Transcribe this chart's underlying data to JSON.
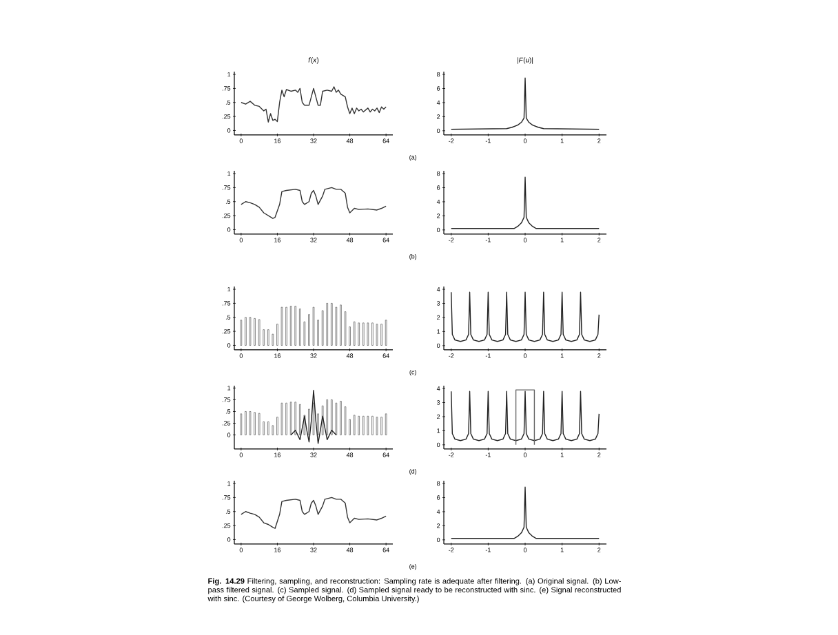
{
  "chart_data": [
    {
      "type": "line",
      "title": "*f*(*x*)",
      "xlim": [
        -3,
        67
      ],
      "ylim": [
        -0.08,
        1.05
      ],
      "xticks": [
        0,
        16,
        32,
        48,
        64
      ],
      "yticks": [
        0,
        {
          "value": 0.25,
          "label": ".25"
        },
        {
          "value": 0.5,
          "label": ".5"
        },
        {
          "value": 0.75,
          "label": ".75"
        },
        1
      ],
      "color": "#333333",
      "x": [
        0,
        2,
        4,
        6,
        8,
        10,
        11,
        12,
        13,
        14,
        15,
        16,
        17,
        18,
        19,
        20,
        22,
        24,
        25,
        26,
        27,
        28,
        30,
        31,
        32,
        33,
        34,
        35,
        36,
        38,
        40,
        41,
        42,
        43,
        44,
        46,
        47,
        48,
        49,
        50,
        51,
        52,
        53,
        54,
        56,
        57,
        58,
        59,
        60,
        61,
        62,
        63,
        64
      ],
      "values": [
        0.5,
        0.47,
        0.52,
        0.45,
        0.43,
        0.35,
        0.38,
        0.15,
        0.3,
        0.18,
        0.2,
        0.16,
        0.5,
        0.72,
        0.6,
        0.73,
        0.7,
        0.72,
        0.68,
        0.75,
        0.5,
        0.45,
        0.45,
        0.6,
        0.75,
        0.6,
        0.45,
        0.45,
        0.7,
        0.72,
        0.7,
        0.78,
        0.68,
        0.72,
        0.65,
        0.6,
        0.42,
        0.3,
        0.4,
        0.3,
        0.4,
        0.35,
        0.38,
        0.33,
        0.4,
        0.33,
        0.38,
        0.35,
        0.4,
        0.32,
        0.42,
        0.38,
        0.42
      ]
    },
    {
      "type": "line",
      "title": "|*F*(*u*)|",
      "annotations": [
        "(a)"
      ],
      "xlim": [
        -2.2,
        2.2
      ],
      "ylim": [
        -0.6,
        8.4
      ],
      "xticks": [
        -2,
        -1,
        0,
        1,
        2
      ],
      "yticks": [
        0,
        2,
        4,
        6,
        8
      ],
      "color": "#222222",
      "x": [
        -2,
        -0.5,
        -0.35,
        -0.2,
        -0.1,
        -0.03,
        0,
        0.03,
        0.1,
        0.2,
        0.35,
        0.5,
        2
      ],
      "values": [
        0.2,
        0.3,
        0.5,
        0.8,
        1.2,
        1.8,
        7.5,
        1.8,
        1.2,
        0.8,
        0.5,
        0.3,
        0.2
      ]
    },
    {
      "type": "line",
      "xlim": [
        -3,
        67
      ],
      "ylim": [
        -0.08,
        1.05
      ],
      "xticks": [
        0,
        16,
        32,
        48,
        64
      ],
      "yticks": [
        0,
        {
          "value": 0.25,
          "label": ".25"
        },
        {
          "value": 0.5,
          "label": ".5"
        },
        {
          "value": 0.75,
          "label": ".75"
        },
        1
      ],
      "color": "#333333",
      "x": [
        0,
        2,
        4,
        6,
        8,
        10,
        12,
        14,
        15,
        17,
        18,
        20,
        24,
        26,
        27,
        28,
        30,
        31,
        32,
        33,
        34,
        36,
        37,
        40,
        42,
        44,
        46,
        47,
        48,
        50,
        52,
        56,
        60,
        62,
        64
      ],
      "values": [
        0.45,
        0.5,
        0.48,
        0.45,
        0.4,
        0.3,
        0.25,
        0.2,
        0.22,
        0.45,
        0.68,
        0.7,
        0.72,
        0.7,
        0.5,
        0.45,
        0.5,
        0.65,
        0.7,
        0.6,
        0.45,
        0.6,
        0.72,
        0.75,
        0.72,
        0.72,
        0.65,
        0.4,
        0.3,
        0.38,
        0.36,
        0.37,
        0.35,
        0.38,
        0.42
      ]
    },
    {
      "type": "line",
      "annotations": [
        "(b)"
      ],
      "xlim": [
        -2.2,
        2.2
      ],
      "ylim": [
        -0.6,
        8.4
      ],
      "xticks": [
        -2,
        -1,
        0,
        1,
        2
      ],
      "yticks": [
        0,
        2,
        4,
        6,
        8
      ],
      "color": "#222222",
      "x": [
        -2,
        -0.3,
        -0.2,
        -0.1,
        -0.03,
        0,
        0.03,
        0.1,
        0.2,
        0.3,
        2
      ],
      "values": [
        0.2,
        0.2,
        0.5,
        1,
        1.8,
        7.5,
        1.8,
        1,
        0.5,
        0.2,
        0.2
      ]
    },
    {
      "type": "bar",
      "xlim": [
        -3,
        67
      ],
      "ylim": [
        -0.08,
        1.05
      ],
      "xticks": [
        0,
        16,
        32,
        48,
        64
      ],
      "yticks": [
        0,
        {
          "value": 0.25,
          "label": ".25"
        },
        {
          "value": 0.5,
          "label": ".5"
        },
        {
          "value": 0.75,
          "label": ".75"
        },
        1
      ],
      "color": "#555555",
      "x": [
        0,
        2,
        4,
        6,
        8,
        10,
        12,
        14,
        16,
        18,
        20,
        22,
        24,
        26,
        28,
        30,
        32,
        34,
        36,
        38,
        40,
        42,
        44,
        46,
        48,
        50,
        52,
        54,
        56,
        58,
        60,
        62,
        64
      ],
      "values": [
        0.45,
        0.5,
        0.5,
        0.48,
        0.46,
        0.28,
        0.28,
        0.2,
        0.38,
        0.68,
        0.68,
        0.7,
        0.7,
        0.65,
        0.42,
        0.55,
        0.68,
        0.45,
        0.62,
        0.75,
        0.75,
        0.68,
        0.72,
        0.6,
        0.33,
        0.42,
        0.4,
        0.4,
        0.4,
        0.4,
        0.38,
        0.38,
        0.45
      ]
    },
    {
      "type": "line",
      "annotations": [
        "(c)"
      ],
      "xlim": [
        -2.2,
        2.2
      ],
      "ylim": [
        -0.3,
        4.2
      ],
      "xticks": [
        -2,
        -1,
        0,
        1,
        2
      ],
      "yticks": [
        0,
        1,
        2,
        3,
        4
      ],
      "color": "#222222",
      "x": [
        -2,
        -1.97,
        -1.9,
        -1.75,
        -1.6,
        -1.53,
        -1.5,
        -1.47,
        -1.4,
        -1.25,
        -1.1,
        -1.03,
        -1,
        -0.97,
        -0.9,
        -0.75,
        -0.6,
        -0.53,
        -0.5,
        -0.47,
        -0.4,
        -0.25,
        -0.1,
        -0.03,
        0,
        0.03,
        0.1,
        0.25,
        0.4,
        0.47,
        0.5,
        0.53,
        0.6,
        0.75,
        0.9,
        0.97,
        1,
        1.03,
        1.1,
        1.25,
        1.4,
        1.47,
        1.5,
        1.53,
        1.6,
        1.75,
        1.9,
        1.97,
        2
      ],
      "values": [
        3.8,
        0.8,
        0.4,
        0.3,
        0.4,
        0.8,
        3.8,
        0.8,
        0.4,
        0.3,
        0.4,
        0.8,
        3.8,
        0.8,
        0.4,
        0.3,
        0.4,
        0.8,
        3.8,
        0.8,
        0.4,
        0.3,
        0.4,
        0.8,
        3.8,
        0.8,
        0.4,
        0.3,
        0.4,
        0.8,
        3.8,
        0.8,
        0.4,
        0.3,
        0.4,
        0.8,
        3.8,
        0.8,
        0.4,
        0.3,
        0.4,
        0.8,
        3.8,
        0.8,
        0.4,
        0.3,
        0.4,
        0.8,
        2.2
      ]
    },
    {
      "type": "bar",
      "xlim": [
        -3,
        67
      ],
      "ylim": [
        -0.3,
        1.05
      ],
      "xticks": [
        0,
        16,
        32,
        48,
        64
      ],
      "yticks": [
        0,
        {
          "value": 0.25,
          "label": ".25"
        },
        {
          "value": 0.5,
          "label": ".5"
        },
        {
          "value": 0.75,
          "label": ".75"
        },
        1
      ],
      "series": [
        {
          "type": "bar",
          "color": "#555555",
          "x": [
            0,
            2,
            4,
            6,
            8,
            10,
            12,
            14,
            16,
            18,
            20,
            22,
            24,
            26,
            28,
            30,
            32,
            34,
            36,
            38,
            40,
            42,
            44,
            46,
            48,
            50,
            52,
            54,
            56,
            58,
            60,
            62,
            64
          ],
          "values": [
            0.45,
            0.5,
            0.5,
            0.48,
            0.46,
            0.28,
            0.28,
            0.2,
            0.38,
            0.68,
            0.68,
            0.7,
            0.7,
            0.65,
            0.42,
            0.55,
            0.68,
            0.45,
            0.62,
            0.75,
            0.75,
            0.68,
            0.72,
            0.6,
            0.33,
            0.42,
            0.4,
            0.4,
            0.4,
            0.4,
            0.38,
            0.38,
            0.45
          ]
        },
        {
          "type": "line",
          "color": "#222222",
          "x": [
            22,
            24,
            26,
            28,
            29,
            30,
            31,
            32,
            33,
            34,
            35,
            36,
            38,
            40,
            42
          ],
          "values": [
            0,
            0.1,
            -0.1,
            0.4,
            0.1,
            -0.15,
            0.3,
            0.95,
            0.3,
            -0.18,
            0.1,
            0.4,
            -0.1,
            0.1,
            0
          ]
        }
      ]
    },
    {
      "type": "line",
      "annotations": [
        "(d)"
      ],
      "xlim": [
        -2.2,
        2.2
      ],
      "ylim": [
        -0.3,
        4.2
      ],
      "xticks": [
        -2,
        -1,
        0,
        1,
        2
      ],
      "yticks": [
        0,
        1,
        2,
        3,
        4
      ],
      "series": [
        {
          "color": "#222222",
          "x": [
            -2,
            -1.97,
            -1.9,
            -1.75,
            -1.6,
            -1.53,
            -1.5,
            -1.47,
            -1.4,
            -1.25,
            -1.1,
            -1.03,
            -1,
            -0.97,
            -0.9,
            -0.75,
            -0.6,
            -0.53,
            -0.5,
            -0.47,
            -0.4,
            -0.25,
            -0.1,
            -0.03,
            0,
            0.03,
            0.1,
            0.25,
            0.4,
            0.47,
            0.5,
            0.53,
            0.6,
            0.75,
            0.9,
            0.97,
            1,
            1.03,
            1.1,
            1.25,
            1.4,
            1.47,
            1.5,
            1.53,
            1.6,
            1.75,
            1.9,
            1.97,
            2
          ],
          "values": [
            3.8,
            0.8,
            0.4,
            0.3,
            0.4,
            0.8,
            3.8,
            0.8,
            0.4,
            0.3,
            0.4,
            0.8,
            3.8,
            0.8,
            0.4,
            0.3,
            0.4,
            0.8,
            3.8,
            0.8,
            0.4,
            0.3,
            0.4,
            0.8,
            3.8,
            0.8,
            0.4,
            0.3,
            0.4,
            0.8,
            3.8,
            0.8,
            0.4,
            0.3,
            0.4,
            0.8,
            3.8,
            0.8,
            0.4,
            0.3,
            0.4,
            0.8,
            3.8,
            0.8,
            0.4,
            0.3,
            0.4,
            0.8,
            2.2
          ]
        },
        {
          "color": "#666666",
          "x": [
            -0.25,
            -0.25,
            0.25,
            0.25
          ],
          "values": [
            0,
            3.9,
            3.9,
            0
          ]
        }
      ]
    },
    {
      "type": "line",
      "xlim": [
        -3,
        67
      ],
      "ylim": [
        -0.08,
        1.05
      ],
      "xticks": [
        0,
        16,
        32,
        48,
        64
      ],
      "yticks": [
        0,
        {
          "value": 0.25,
          "label": ".25"
        },
        {
          "value": 0.5,
          "label": ".5"
        },
        {
          "value": 0.75,
          "label": ".75"
        },
        1
      ],
      "color": "#333333",
      "x": [
        0,
        2,
        4,
        6,
        8,
        10,
        12,
        14,
        15,
        17,
        18,
        20,
        24,
        26,
        27,
        28,
        30,
        31,
        32,
        33,
        34,
        36,
        37,
        40,
        42,
        44,
        46,
        47,
        48,
        50,
        52,
        56,
        60,
        62,
        64
      ],
      "values": [
        0.45,
        0.5,
        0.47,
        0.45,
        0.4,
        0.3,
        0.27,
        0.22,
        0.2,
        0.45,
        0.68,
        0.7,
        0.72,
        0.7,
        0.5,
        0.45,
        0.5,
        0.65,
        0.7,
        0.6,
        0.45,
        0.6,
        0.72,
        0.75,
        0.72,
        0.72,
        0.65,
        0.4,
        0.3,
        0.38,
        0.36,
        0.37,
        0.35,
        0.38,
        0.42
      ]
    },
    {
      "type": "line",
      "annotations": [
        "(e)",
        "**Fig. 14.29** Filtering, sampling, and reconstruction: Sampling rate is adequate after filtering. (a) Original signal. (b) Low-pass filtered signal. (c) Sampled signal. (d) Sampled signal ready to be reconstructed with sinc. (e) Signal reconstructed with sinc. (Courtesy of George Wolberg, Columbia University.)"
      ],
      "xlim": [
        -2.2,
        2.2
      ],
      "ylim": [
        -0.6,
        8.4
      ],
      "xticks": [
        -2,
        -1,
        0,
        1,
        2
      ],
      "yticks": [
        0,
        2,
        4,
        6,
        8
      ],
      "color": "#222222",
      "x": [
        -2,
        -0.3,
        -0.2,
        -0.1,
        -0.03,
        0,
        0.03,
        0.1,
        0.2,
        0.3,
        2
      ],
      "values": [
        0.2,
        0.2,
        0.5,
        1,
        1.8,
        7.5,
        1.8,
        1,
        0.5,
        0.2,
        0.2
      ]
    }
  ]
}
